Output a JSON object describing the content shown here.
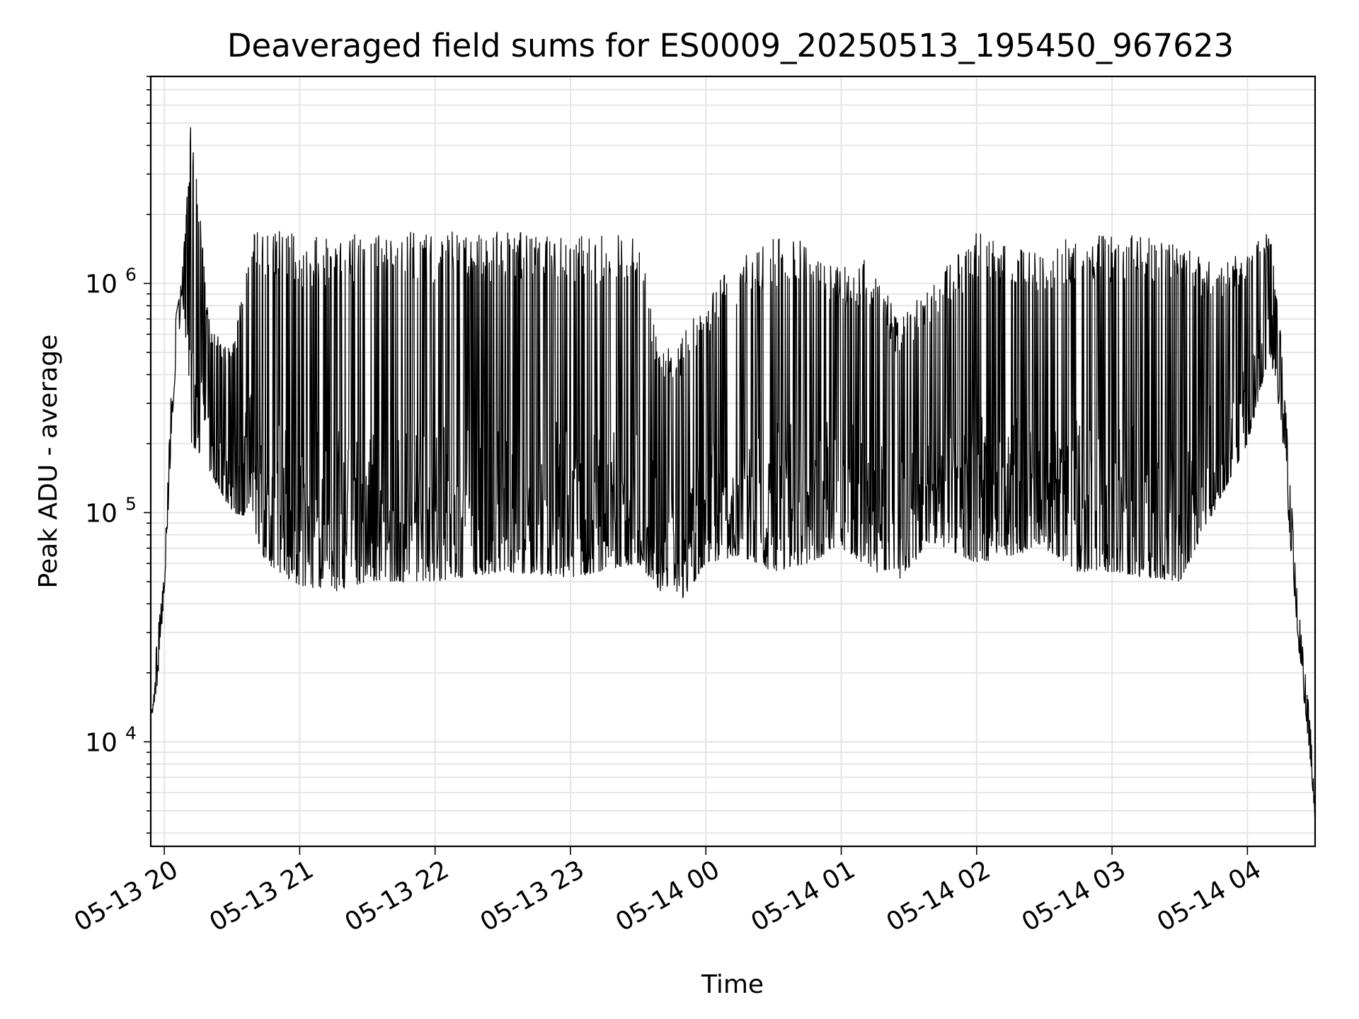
{
  "chart_data": {
    "type": "line",
    "title": "Deaveraged field sums for ES0009_20250513_195450_967623",
    "xlabel": "Time",
    "ylabel": "Peak ADU - average",
    "yscale": "log",
    "ylim": [
      3500,
      8000000
    ],
    "xlim": [
      "2025-05-13 19:54",
      "2025-05-14 04:30"
    ],
    "grid": "on (major and minor)",
    "line_color": "#000000",
    "x_ticks": [
      {
        "t": "2025-05-13 20:00",
        "label": "05-13 20"
      },
      {
        "t": "2025-05-13 21:00",
        "label": "05-13 21"
      },
      {
        "t": "2025-05-13 22:00",
        "label": "05-13 22"
      },
      {
        "t": "2025-05-13 23:00",
        "label": "05-13 23"
      },
      {
        "t": "2025-05-14 00:00",
        "label": "05-14 00"
      },
      {
        "t": "2025-05-14 01:00",
        "label": "05-14 01"
      },
      {
        "t": "2025-05-14 02:00",
        "label": "05-14 02"
      },
      {
        "t": "2025-05-14 03:00",
        "label": "05-14 03"
      },
      {
        "t": "2025-05-14 04:00",
        "label": "05-14 04"
      }
    ],
    "y_ticks": [
      {
        "value": 10000,
        "base": "10",
        "exp": "4"
      },
      {
        "value": 100000,
        "base": "10",
        "exp": "5"
      },
      {
        "value": 1000000,
        "base": "10",
        "exp": "6"
      }
    ],
    "series": [
      {
        "envelope": [
          {
            "t": "2025-05-13 19:54",
            "low": 12000,
            "high": 14000
          },
          {
            "t": "2025-05-13 19:57",
            "low": 18000,
            "high": 30000
          },
          {
            "t": "2025-05-13 20:00",
            "low": 45000,
            "high": 55000
          },
          {
            "t": "2025-05-13 20:04",
            "low": 300000,
            "high": 600000
          },
          {
            "t": "2025-05-13 20:08",
            "low": 900000,
            "high": 1150000
          },
          {
            "t": "2025-05-13 20:12",
            "low": 200000,
            "high": 5700000
          },
          {
            "t": "2025-05-13 20:20",
            "low": 150000,
            "high": 700000
          },
          {
            "t": "2025-05-13 20:30",
            "low": 100000,
            "high": 500000
          },
          {
            "t": "2025-05-13 20:38",
            "low": 95000,
            "high": 1700000
          },
          {
            "t": "2025-05-13 20:45",
            "low": 60000,
            "high": 1750000
          },
          {
            "t": "2025-05-13 21:00",
            "low": 48000,
            "high": 1650000
          },
          {
            "t": "2025-05-13 21:15",
            "low": 45000,
            "high": 1600000
          },
          {
            "t": "2025-05-13 21:30",
            "low": 50000,
            "high": 1700000
          },
          {
            "t": "2025-05-13 22:00",
            "low": 50000,
            "high": 1700000
          },
          {
            "t": "2025-05-13 22:30",
            "low": 55000,
            "high": 1700000
          },
          {
            "t": "2025-05-13 23:00",
            "low": 52000,
            "high": 1650000
          },
          {
            "t": "2025-05-13 23:30",
            "low": 60000,
            "high": 1650000
          },
          {
            "t": "2025-05-13 23:40",
            "low": 45000,
            "high": 500000
          },
          {
            "t": "2025-05-13 23:50",
            "low": 42000,
            "high": 600000
          },
          {
            "t": "2025-05-14 00:00",
            "low": 60000,
            "high": 900000
          },
          {
            "t": "2025-05-14 00:15",
            "low": 65000,
            "high": 1300000
          },
          {
            "t": "2025-05-14 00:30",
            "low": 55000,
            "high": 1600000
          },
          {
            "t": "2025-05-14 00:45",
            "low": 60000,
            "high": 1550000
          },
          {
            "t": "2025-05-14 01:00",
            "low": 70000,
            "high": 1200000
          },
          {
            "t": "2025-05-14 01:15",
            "low": 55000,
            "high": 1300000
          },
          {
            "t": "2025-05-14 01:25",
            "low": 50000,
            "high": 700000
          },
          {
            "t": "2025-05-14 01:40",
            "low": 75000,
            "high": 1000000
          },
          {
            "t": "2025-05-14 02:00",
            "low": 60000,
            "high": 1700000
          },
          {
            "t": "2025-05-14 02:30",
            "low": 70000,
            "high": 1350000
          },
          {
            "t": "2025-05-14 02:45",
            "low": 55000,
            "high": 1700000
          },
          {
            "t": "2025-05-14 03:00",
            "low": 55000,
            "high": 1650000
          },
          {
            "t": "2025-05-14 03:30",
            "low": 50000,
            "high": 1600000
          },
          {
            "t": "2025-05-14 03:45",
            "low": 100000,
            "high": 1200000
          },
          {
            "t": "2025-05-14 04:00",
            "low": 200000,
            "high": 1400000
          },
          {
            "t": "2025-05-14 04:10",
            "low": 500000,
            "high": 1700000
          },
          {
            "t": "2025-05-14 04:15",
            "low": 250000,
            "high": 600000
          },
          {
            "t": "2025-05-14 04:22",
            "low": 30000,
            "high": 45000
          },
          {
            "t": "2025-05-14 04:28",
            "low": 8000,
            "high": 12000
          },
          {
            "t": "2025-05-14 04:30",
            "low": 4500,
            "high": 5000
          }
        ]
      }
    ]
  }
}
